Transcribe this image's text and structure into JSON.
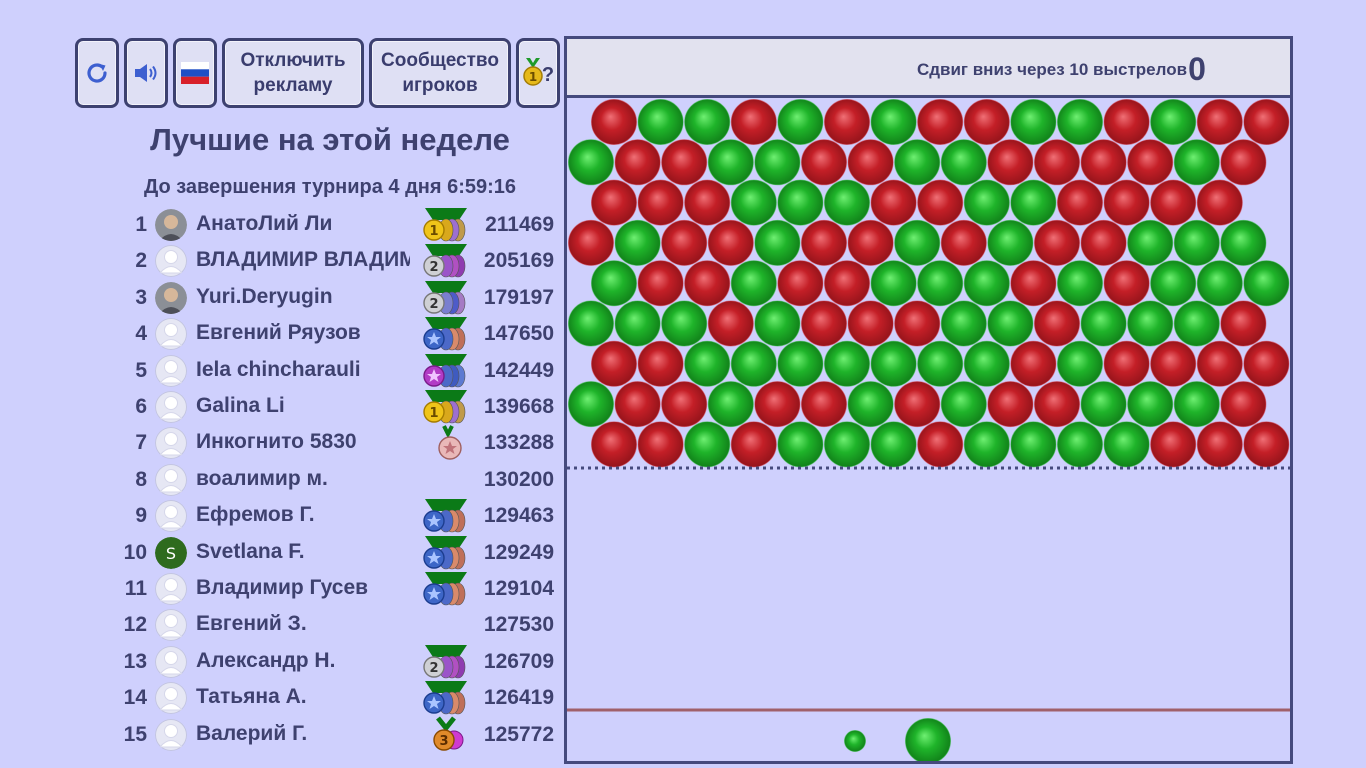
{
  "toolbar": {
    "ads_label": "Отключить\nрекламу",
    "community_label": "Сообщество\nигроков",
    "awards_hint": "?"
  },
  "leaderboard": {
    "title": "Лучшие на этой неделе",
    "timer": "До завершения турнира 4 дня 6:59:16",
    "players": [
      {
        "rank": "1",
        "name": "АнатоЛий Ли",
        "score": "211469",
        "avatar": "photo",
        "badge": "gold-1"
      },
      {
        "rank": "2",
        "name": "ВЛАДИМИР ВЛАДИМ",
        "score": "205169",
        "avatar": "default",
        "badge": "silver-2-purple"
      },
      {
        "rank": "3",
        "name": "Yuri.Deryugin",
        "score": "179197",
        "avatar": "photo",
        "badge": "silver-2-blue"
      },
      {
        "rank": "4",
        "name": "Евгений Ряузов",
        "score": "147650",
        "avatar": "default",
        "badge": "blue-star"
      },
      {
        "rank": "5",
        "name": "Iela chincharauli",
        "score": "142449",
        "avatar": "default",
        "badge": "purple-star"
      },
      {
        "rank": "6",
        "name": "Galina Li",
        "score": "139668",
        "avatar": "default",
        "badge": "gold-1"
      },
      {
        "rank": "7",
        "name": "Инкогнито 5830",
        "score": "133288",
        "avatar": "default",
        "badge": "pink-star-medal"
      },
      {
        "rank": "8",
        "name": "воалимир м.",
        "score": "130200",
        "avatar": "default",
        "badge": ""
      },
      {
        "rank": "9",
        "name": "Ефремов Г.",
        "score": "129463",
        "avatar": "default",
        "badge": "blue-star"
      },
      {
        "rank": "10",
        "name": "Svetlana F.",
        "score": "129249",
        "avatar": "letter",
        "letter": "S",
        "badge": "blue-star"
      },
      {
        "rank": "11",
        "name": "Владимир Гусев",
        "score": "129104",
        "avatar": "default",
        "badge": "blue-star"
      },
      {
        "rank": "12",
        "name": "Евгений З.",
        "score": "127530",
        "avatar": "default",
        "badge": ""
      },
      {
        "rank": "13",
        "name": "Александр Н.",
        "score": "126709",
        "avatar": "default",
        "badge": "silver-2-purple"
      },
      {
        "rank": "14",
        "name": "Татьяна А.",
        "score": "126419",
        "avatar": "default",
        "badge": "blue-star"
      },
      {
        "rank": "15",
        "name": "Валерий Г.",
        "score": "125772",
        "avatar": "default",
        "badge": "bronze-3"
      }
    ]
  },
  "game": {
    "shift_text": "Сдвиг вниз через 10 выстрелов",
    "score": "0",
    "colors": {
      "R": "#d0282f",
      "G": "#1fb42a"
    },
    "grid": [
      "RGGRGRGRRGGRGRR",
      "GRRGGRRGGRRRRGR",
      "RRRGGGRRGGRRRR",
      "RGRRGRRGRGRRGGG",
      "GRRGRRGGGRGRGGG",
      "GGGRGRRRGGRGGGR",
      "RRGGGGGGGRGRRRR",
      "GRRGRRGRGRRGGGR",
      "RRGRGGGRGGGGRRR"
    ],
    "next_bubble": "G",
    "current_bubble": "G"
  }
}
